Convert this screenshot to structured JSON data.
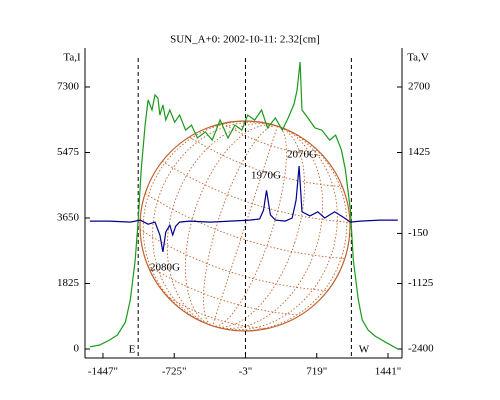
{
  "chart_data": {
    "type": "line",
    "title": "SUN_A+0: 2002-10-11: 2.32[cm]",
    "y_label": "Ta,I",
    "y2_label": "Ta,V",
    "xlim": [
      -1629,
      1583
    ],
    "ylim": [
      -251,
      8387
    ],
    "y2lim": [
      -2575,
      3459
    ],
    "xticks": [
      {
        "value": -1447,
        "label": "-1447\""
      },
      {
        "value": -725,
        "label": "-725\""
      },
      {
        "value": -3,
        "label": "-3\""
      },
      {
        "value": 719,
        "label": "719\""
      },
      {
        "value": 1441,
        "label": "1441\""
      }
    ],
    "yticks": [
      0,
      1825,
      3650,
      5475,
      7300
    ],
    "y2ticks": [
      -2400,
      -1125,
      -150,
      1425,
      2700
    ],
    "vlines": [
      -1090,
      -3,
      1070
    ],
    "limb_labels": [
      "E",
      "W"
    ],
    "annotations": [
      "2080G",
      "1970G",
      "2070G"
    ],
    "series": [
      {
        "name": "Ta,I",
        "color": "#1a9a1a",
        "axis": "y",
        "x": [
          -1580,
          -1480,
          -1380,
          -1300,
          -1220,
          -1170,
          -1120,
          -1090,
          -1060,
          -1020,
          -990,
          -950,
          -920,
          -890,
          -870,
          -840,
          -810,
          -770,
          -720,
          -670,
          -610,
          -550,
          -490,
          -410,
          -340,
          -260,
          -180,
          -110,
          -40,
          20,
          90,
          160,
          220,
          300,
          370,
          430,
          490,
          520,
          550,
          570,
          630,
          700,
          770,
          850,
          910,
          970,
          1010,
          1060,
          1090,
          1140,
          1180,
          1240,
          1310,
          1410,
          1540
        ],
        "values": [
          60,
          110,
          250,
          390,
          750,
          1370,
          2480,
          3590,
          4990,
          6240,
          6940,
          6660,
          7080,
          6990,
          6520,
          6800,
          6380,
          6660,
          6320,
          6520,
          6100,
          6240,
          5880,
          6050,
          5820,
          6380,
          5880,
          6240,
          6100,
          6520,
          6380,
          6660,
          6160,
          6440,
          6100,
          6440,
          6830,
          7220,
          8000,
          6660,
          6440,
          6160,
          6100,
          5820,
          5960,
          5540,
          4990,
          3870,
          2480,
          1370,
          810,
          530,
          360,
          200,
          0
        ]
      },
      {
        "name": "Ta,V",
        "color": "#00008b",
        "axis": "y2",
        "x": [
          -1580,
          -1380,
          -1170,
          -1070,
          -990,
          -920,
          -870,
          -840,
          -810,
          -770,
          -740,
          -710,
          -670,
          -570,
          -360,
          -160,
          40,
          140,
          180,
          210,
          250,
          300,
          400,
          470,
          510,
          540,
          570,
          650,
          730,
          800,
          900,
          1000,
          1060,
          1160,
          1360,
          1540
        ],
        "values": [
          90,
          90,
          70,
          110,
          30,
          70,
          -180,
          -510,
          -120,
          10,
          -180,
          -10,
          70,
          90,
          70,
          90,
          110,
          130,
          300,
          690,
          210,
          110,
          90,
          150,
          500,
          1160,
          270,
          190,
          270,
          150,
          270,
          150,
          70,
          90,
          110,
          110
        ]
      }
    ]
  }
}
